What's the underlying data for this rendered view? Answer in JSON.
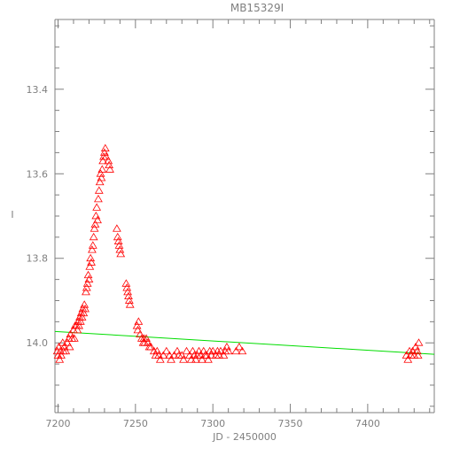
{
  "chart_data": {
    "type": "scatter",
    "title": "MB15329I",
    "xlabel": "JD - 2450000",
    "ylabel": "I",
    "xlim": [
      7198,
      7443
    ],
    "ylim": [
      14.165,
      13.235
    ],
    "y_inverted": true,
    "grid": false,
    "x_ticks": [
      7200,
      7250,
      7300,
      7350,
      7400
    ],
    "x_tick_labels": [
      "7200",
      "7250",
      "7300",
      "7350",
      "7400"
    ],
    "y_ticks": [
      13.4,
      13.6,
      13.8,
      14.0
    ],
    "y_tick_labels": [
      "13.4",
      "13.6",
      "13.8",
      "14.0"
    ],
    "marker_color": "#ff0000",
    "line_color": "#00dd00",
    "axis_color": "#7f7f7f",
    "trend_line": {
      "x": [
        7198,
        7443
      ],
      "y": [
        13.973,
        14.027
      ]
    },
    "series": [
      {
        "marker": "triangle-open",
        "points": [
          [
            7199.5,
            14.02
          ],
          [
            7200,
            14.03
          ],
          [
            7200.5,
            14.01
          ],
          [
            7201,
            14.04
          ],
          [
            7201.5,
            14.02
          ],
          [
            7202,
            14.03
          ],
          [
            7203,
            14.0
          ],
          [
            7203.5,
            14.02
          ],
          [
            7204,
            14.01
          ],
          [
            7205,
            14.02
          ],
          [
            7206,
            14.0
          ],
          [
            7207,
            13.99
          ],
          [
            7207.5,
            14.01
          ],
          [
            7208,
            13.98
          ],
          [
            7209,
            13.99
          ],
          [
            7210,
            13.97
          ],
          [
            7210.5,
            13.99
          ],
          [
            7211,
            13.96
          ],
          [
            7212,
            13.96
          ],
          [
            7212.5,
            13.97
          ],
          [
            7213,
            13.95
          ],
          [
            7213.5,
            13.96
          ],
          [
            7214,
            13.94
          ],
          [
            7214.5,
            13.95
          ],
          [
            7215,
            13.93
          ],
          [
            7215.5,
            13.94
          ],
          [
            7216,
            13.92
          ],
          [
            7216.5,
            13.93
          ],
          [
            7217,
            13.91
          ],
          [
            7217.5,
            13.92
          ],
          [
            7218,
            13.88
          ],
          [
            7218.5,
            13.87
          ],
          [
            7219,
            13.86
          ],
          [
            7219.5,
            13.84
          ],
          [
            7220,
            13.85
          ],
          [
            7220.5,
            13.82
          ],
          [
            7221,
            13.8
          ],
          [
            7221.5,
            13.81
          ],
          [
            7222,
            13.78
          ],
          [
            7222.5,
            13.77
          ],
          [
            7223,
            13.75
          ],
          [
            7223.5,
            13.73
          ],
          [
            7224,
            13.72
          ],
          [
            7224.5,
            13.7
          ],
          [
            7225,
            13.68
          ],
          [
            7225.5,
            13.71
          ],
          [
            7226,
            13.66
          ],
          [
            7226.5,
            13.64
          ],
          [
            7227,
            13.62
          ],
          [
            7227.5,
            13.6
          ],
          [
            7228,
            13.61
          ],
          [
            7228.5,
            13.59
          ],
          [
            7229,
            13.57
          ],
          [
            7229.5,
            13.56
          ],
          [
            7230,
            13.55
          ],
          [
            7230.5,
            13.54
          ],
          [
            7231,
            13.56
          ],
          [
            7232.5,
            13.57
          ],
          [
            7233,
            13.58
          ],
          [
            7233.5,
            13.59
          ],
          [
            7238,
            13.73
          ],
          [
            7238.5,
            13.75
          ],
          [
            7239,
            13.76
          ],
          [
            7239.5,
            13.77
          ],
          [
            7240,
            13.78
          ],
          [
            7240.5,
            13.79
          ],
          [
            7244,
            13.86
          ],
          [
            7244.5,
            13.87
          ],
          [
            7245,
            13.88
          ],
          [
            7245.5,
            13.89
          ],
          [
            7246,
            13.9
          ],
          [
            7246.5,
            13.91
          ],
          [
            7251,
            13.96
          ],
          [
            7251.5,
            13.97
          ],
          [
            7252,
            13.95
          ],
          [
            7253,
            13.98
          ],
          [
            7254,
            13.99
          ],
          [
            7255,
            14.0
          ],
          [
            7255.5,
            13.99
          ],
          [
            7256,
            14.0
          ],
          [
            7257,
            13.99
          ],
          [
            7258,
            14.0
          ],
          [
            7259,
            14.01
          ],
          [
            7260,
            14.01
          ],
          [
            7262,
            14.02
          ],
          [
            7263,
            14.03
          ],
          [
            7264,
            14.02
          ],
          [
            7265,
            14.03
          ],
          [
            7266,
            14.04
          ],
          [
            7268,
            14.03
          ],
          [
            7270,
            14.02
          ],
          [
            7272,
            14.03
          ],
          [
            7273,
            14.04
          ],
          [
            7275,
            14.03
          ],
          [
            7277,
            14.02
          ],
          [
            7278,
            14.03
          ],
          [
            7280,
            14.03
          ],
          [
            7281,
            14.04
          ],
          [
            7283,
            14.02
          ],
          [
            7285,
            14.03
          ],
          [
            7286,
            14.04
          ],
          [
            7287,
            14.02
          ],
          [
            7288,
            14.03
          ],
          [
            7289,
            14.04
          ],
          [
            7290,
            14.03
          ],
          [
            7291,
            14.02
          ],
          [
            7292,
            14.03
          ],
          [
            7293,
            14.04
          ],
          [
            7294,
            14.02
          ],
          [
            7295,
            14.03
          ],
          [
            7296,
            14.03
          ],
          [
            7297,
            14.04
          ],
          [
            7298,
            14.02
          ],
          [
            7299,
            14.03
          ],
          [
            7300,
            14.02
          ],
          [
            7302,
            14.03
          ],
          [
            7303,
            14.02
          ],
          [
            7304,
            14.03
          ],
          [
            7305,
            14.02
          ],
          [
            7307,
            14.03
          ],
          [
            7308,
            14.02
          ],
          [
            7309,
            14.01
          ],
          [
            7310,
            14.02
          ],
          [
            7315,
            14.02
          ],
          [
            7317,
            14.01
          ],
          [
            7319,
            14.02
          ],
          [
            7425,
            14.03
          ],
          [
            7426,
            14.04
          ],
          [
            7427,
            14.02
          ],
          [
            7428,
            14.03
          ],
          [
            7429,
            14.02
          ],
          [
            7430,
            14.03
          ],
          [
            7431,
            14.01
          ],
          [
            7432,
            14.02
          ],
          [
            7432.5,
            14.03
          ],
          [
            7433,
            14.0
          ]
        ]
      }
    ]
  }
}
